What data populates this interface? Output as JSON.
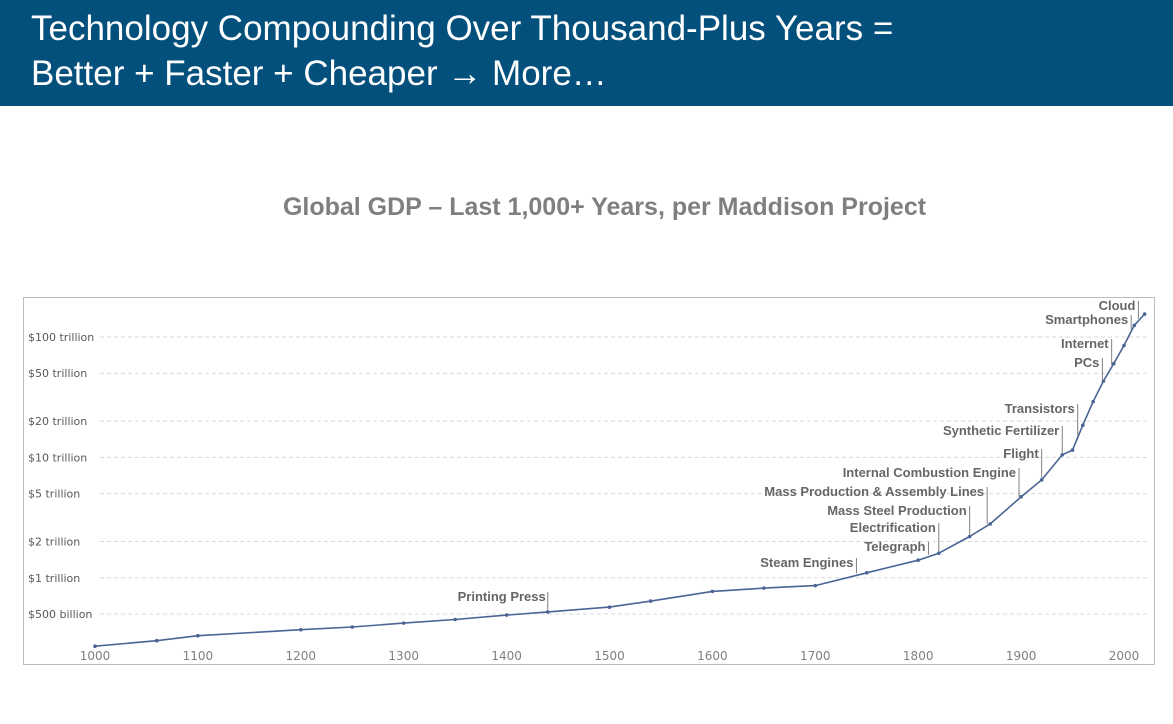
{
  "header": {
    "title_line1": "Technology Compounding Over Thousand-Plus Years =",
    "title_line2": "Better + Faster + Cheaper → More…"
  },
  "colors": {
    "header_bg": "#03507d",
    "line": "#4a6494",
    "grid": "#d9d9d9"
  },
  "chart_data": {
    "type": "line",
    "title": "Global GDP – Last 1,000+ Years, per Maddison Project",
    "xlabel": "",
    "ylabel": "",
    "y_scale": "log",
    "xlim": [
      1000,
      2020
    ],
    "x_ticks": [
      1000,
      1100,
      1200,
      1300,
      1400,
      1500,
      1600,
      1700,
      1800,
      1900,
      2000
    ],
    "y_ticks": [
      {
        "value": 0.5,
        "label": "$500 billion"
      },
      {
        "value": 1,
        "label": "$1 trillion"
      },
      {
        "value": 2,
        "label": "$2 trillion"
      },
      {
        "value": 5,
        "label": "$5 trillion"
      },
      {
        "value": 10,
        "label": "$10 trillion"
      },
      {
        "value": 20,
        "label": "$20 trillion"
      },
      {
        "value": 50,
        "label": "$50 trillion"
      },
      {
        "value": 100,
        "label": "$100 trillion"
      }
    ],
    "grid": true,
    "x": [
      1000,
      1060,
      1100,
      1200,
      1250,
      1300,
      1350,
      1400,
      1440,
      1500,
      1540,
      1600,
      1650,
      1700,
      1750,
      1800,
      1820,
      1850,
      1870,
      1900,
      1920,
      1940,
      1950,
      1960,
      1970,
      1980,
      1990,
      2000,
      2010,
      2020
    ],
    "y_trillions": [
      0.27,
      0.3,
      0.33,
      0.37,
      0.39,
      0.42,
      0.45,
      0.49,
      0.52,
      0.57,
      0.64,
      0.77,
      0.82,
      0.86,
      1.1,
      1.4,
      1.6,
      2.2,
      2.8,
      4.7,
      6.5,
      10.5,
      11.5,
      18.5,
      29.0,
      43.0,
      60.0,
      85.0,
      125.0,
      155.0
    ],
    "annotations": [
      {
        "label": "Printing Press",
        "year": 1440
      },
      {
        "label": "Steam Engines",
        "year": 1740
      },
      {
        "label": "Telegraph",
        "year": 1810
      },
      {
        "label": "Electrification",
        "year": 1820
      },
      {
        "label": "Mass Steel Production",
        "year": 1850
      },
      {
        "label": "Mass Production & Assembly Lines",
        "year": 1867
      },
      {
        "label": "Internal Combustion Engine",
        "year": 1898
      },
      {
        "label": "Flight",
        "year": 1920
      },
      {
        "label": "Synthetic Fertilizer",
        "year": 1940
      },
      {
        "label": "Transistors",
        "year": 1955
      },
      {
        "label": "PCs",
        "year": 1979
      },
      {
        "label": "Internet",
        "year": 1988
      },
      {
        "label": "Smartphones",
        "year": 2007
      },
      {
        "label": "Cloud",
        "year": 2014
      }
    ]
  }
}
